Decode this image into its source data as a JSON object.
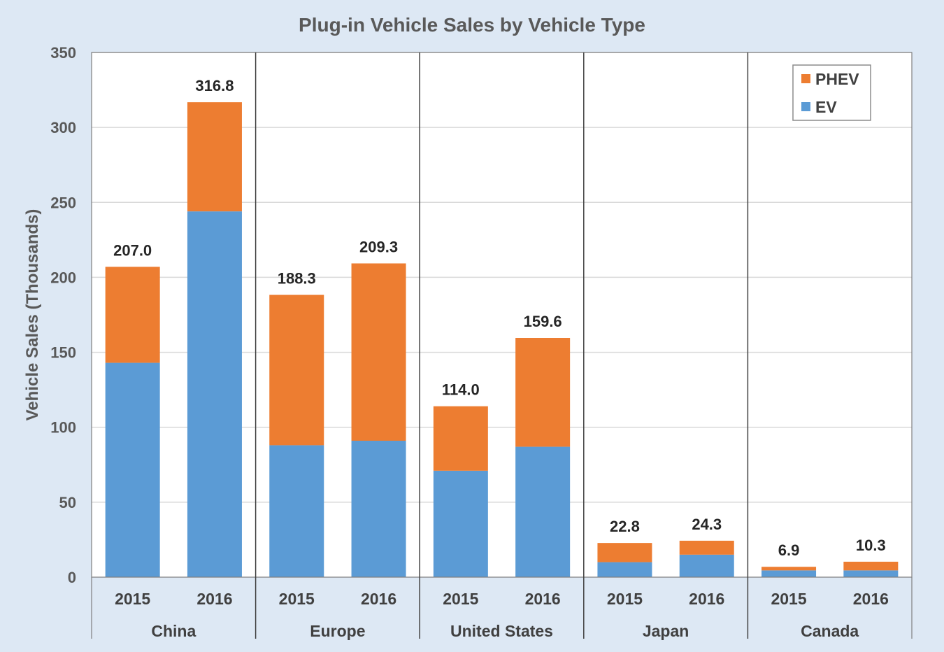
{
  "chart_data": {
    "type": "bar",
    "stacked": true,
    "title": "Plug-in Vehicle Sales by Vehicle Type",
    "ylabel": "Vehicle Sales (Thousands)",
    "ylim": [
      0,
      350
    ],
    "yticks": [
      0,
      50,
      100,
      150,
      200,
      250,
      300,
      350
    ],
    "grid": true,
    "legend_position": "top-right",
    "groups": [
      "China",
      "Europe",
      "United States",
      "Japan",
      "Canada"
    ],
    "categories": [
      "2015",
      "2016",
      "2015",
      "2016",
      "2015",
      "2016",
      "2015",
      "2016",
      "2015",
      "2016"
    ],
    "series": [
      {
        "name": "EV",
        "color": "#5b9bd5",
        "values": [
          143,
          244,
          88,
          91,
          71,
          87,
          10,
          15,
          4.5,
          4.5
        ]
      },
      {
        "name": "PHEV",
        "color": "#ed7d31",
        "values": [
          64,
          72.8,
          100.3,
          118.3,
          43,
          72.6,
          12.8,
          9.3,
          2.4,
          5.8
        ]
      }
    ],
    "totals": [
      "207.0",
      "316.8",
      "188.3",
      "209.3",
      "114.0",
      "159.6",
      "22.8",
      "24.3",
      "6.9",
      "10.3"
    ],
    "legend_order": [
      "PHEV",
      "EV"
    ]
  }
}
